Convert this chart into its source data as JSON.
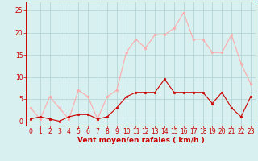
{
  "wind_avg": [
    0.5,
    1.0,
    0.5,
    0.0,
    1.0,
    1.5,
    1.5,
    0.5,
    1.0,
    3.0,
    5.5,
    6.5,
    6.5,
    6.5,
    9.5,
    6.5,
    6.5,
    6.5,
    6.5,
    4.0,
    6.5,
    3.0,
    1.0,
    5.5
  ],
  "wind_gust": [
    3.0,
    0.5,
    5.5,
    3.0,
    0.5,
    7.0,
    5.5,
    0.5,
    5.5,
    7.0,
    15.5,
    18.5,
    16.5,
    19.5,
    19.5,
    21.0,
    24.5,
    18.5,
    18.5,
    15.5,
    15.5,
    19.5,
    13.0,
    8.5
  ],
  "avg_color": "#cc0000",
  "gust_color": "#ffaaaa",
  "bg_color": "#d8f0f0",
  "grid_color": "#b0d0d0",
  "axis_color": "#cc0000",
  "spine_color": "#cc0000",
  "xlabel": "Vent moyen/en rafales ( km/h )",
  "ylim": [
    -1,
    27
  ],
  "yticks": [
    0,
    5,
    10,
    15,
    20,
    25
  ],
  "xticks": [
    0,
    1,
    2,
    3,
    4,
    5,
    6,
    7,
    8,
    9,
    10,
    11,
    12,
    13,
    14,
    15,
    16,
    17,
    18,
    19,
    20,
    21,
    22,
    23
  ],
  "figsize": [
    3.2,
    2.0
  ],
  "dpi": 100,
  "tick_fontsize": 5.5,
  "xlabel_fontsize": 6.5,
  "marker_size": 2.0,
  "linewidth": 0.8
}
